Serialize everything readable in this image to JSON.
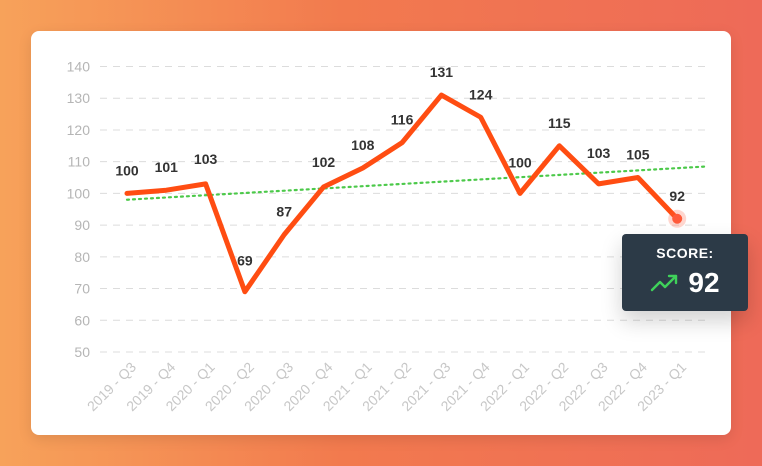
{
  "chart_data": {
    "type": "line",
    "categories": [
      "2019 - Q3",
      "2019 - Q4",
      "2020 - Q1",
      "2020 - Q2",
      "2020 - Q3",
      "2020 - Q4",
      "2021 - Q1",
      "2021 - Q2",
      "2021 - Q3",
      "2021 - Q4",
      "2022 - Q1",
      "2022 - Q2",
      "2022 - Q3",
      "2022 - Q4",
      "2023 - Q1"
    ],
    "series": [
      {
        "values": [
          100,
          101,
          103,
          69,
          87,
          102,
          108,
          116,
          131,
          124,
          100,
          115,
          103,
          105,
          92
        ]
      }
    ],
    "trendline": {
      "start": 98,
      "end": 108.5,
      "style": "dotted"
    },
    "ylim": [
      50,
      140
    ],
    "yticks": [
      140,
      130,
      120,
      110,
      100,
      90,
      80,
      70,
      60,
      50
    ],
    "grid": true,
    "xlabel": "",
    "ylabel": "",
    "colors": {
      "line": "#ff4d12",
      "trend": "#4cc94a",
      "marker": "#ff5a3a",
      "grid": "#dcdcdc"
    }
  },
  "score_card": {
    "label": "SCORE:",
    "value": "92",
    "icon": "trending-up-icon",
    "icon_color": "#3fd15a",
    "background": "#2c3a47"
  }
}
